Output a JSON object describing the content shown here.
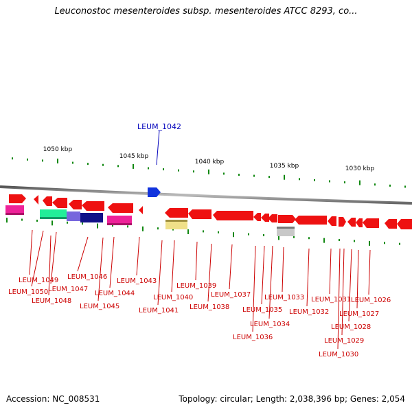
{
  "title": "Leuconostoc mesenteroides subsp. mesenteroides ATCC 8293, co...",
  "footer": {
    "accession": "Accession: NC_008531",
    "topology": "Topology: circular; Length: 2,038,396 bp; Genes: 2,054"
  },
  "scale_labels": [
    "1050 kbp",
    "1045 kbp",
    "1040 kbp",
    "1035 kbp",
    "1030 kbp"
  ],
  "highlight_gene": "LEUM_1042",
  "gene_labels": [
    "LEUM_1049",
    "LEUM_1050",
    "LEUM_1047",
    "LEUM_1048",
    "LEUM_1046",
    "LEUM_1043",
    "LEUM_1044",
    "LEUM_1045",
    "LEUM_1040",
    "LEUM_1041",
    "LEUM_1039",
    "LEUM_1038",
    "LEUM_1037",
    "LEUM_1033",
    "LEUM_1035",
    "LEUM_1034",
    "LEUM_1036",
    "LEUM_1031",
    "LEUM_1026",
    "LEUM_1032",
    "LEUM_1027",
    "LEUM_1028",
    "LEUM_1029",
    "LEUM_1030"
  ],
  "colors": {
    "gene_red": "#ee1111",
    "highlight_blue": "#1133dd",
    "label_red": "#cc0000",
    "label_blue": "#0000bb",
    "tick_green": "#118811",
    "backbone": "#888888"
  }
}
